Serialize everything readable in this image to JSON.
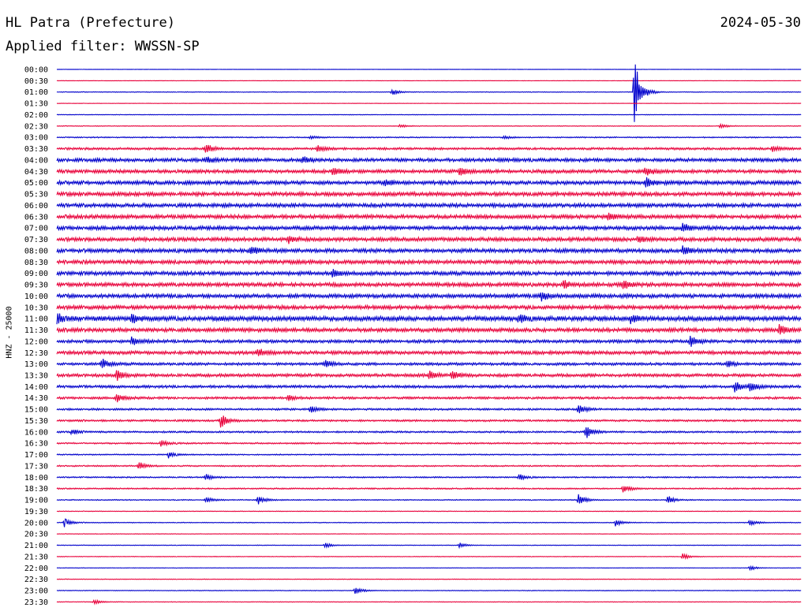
{
  "header": {
    "station": "HL Patra (Prefecture)",
    "date": "2024-05-30",
    "filter": "Applied filter: WWSSN-SP"
  },
  "chart_data": {
    "type": "line",
    "title": "HL Patra (Prefecture)",
    "subtitle": "Applied filter: WWSSN-SP",
    "date": "2024-05-30",
    "ylabel": "HNZ - 25000",
    "xlabel": "",
    "grid": false,
    "row_interval_minutes": 30,
    "colors": [
      "#0000cc",
      "#e8003a"
    ],
    "rows": [
      {
        "label": "00:00",
        "color": "#0000cc",
        "amplitude": 0.1,
        "events": []
      },
      {
        "label": "00:30",
        "color": "#e8003a",
        "amplitude": 0.15,
        "events": []
      },
      {
        "label": "01:00",
        "color": "#0000cc",
        "amplitude": 0.35,
        "events": [
          {
            "t": 0.45,
            "amp": 4
          },
          {
            "t": 0.775,
            "amp": 40
          }
        ]
      },
      {
        "label": "01:30",
        "color": "#e8003a",
        "amplitude": 0.15,
        "events": []
      },
      {
        "label": "02:00",
        "color": "#0000cc",
        "amplitude": 0.3,
        "events": []
      },
      {
        "label": "02:30",
        "color": "#e8003a",
        "amplitude": 0.35,
        "events": [
          {
            "t": 0.46,
            "amp": 2
          },
          {
            "t": 0.89,
            "amp": 3
          }
        ]
      },
      {
        "label": "03:00",
        "color": "#0000cc",
        "amplitude": 0.6,
        "events": [
          {
            "t": 0.34,
            "amp": 2
          },
          {
            "t": 0.6,
            "amp": 2
          }
        ]
      },
      {
        "label": "03:30",
        "color": "#e8003a",
        "amplitude": 1.2,
        "events": [
          {
            "t": 0.2,
            "amp": 6
          },
          {
            "t": 0.35,
            "amp": 4
          },
          {
            "t": 0.96,
            "amp": 4
          }
        ]
      },
      {
        "label": "04:00",
        "color": "#0000cc",
        "amplitude": 1.8,
        "events": [
          {
            "t": 0.2,
            "amp": 4
          },
          {
            "t": 0.33,
            "amp": 4
          }
        ]
      },
      {
        "label": "04:30",
        "color": "#e8003a",
        "amplitude": 1.8,
        "events": [
          {
            "t": 0.37,
            "amp": 5
          },
          {
            "t": 0.54,
            "amp": 5
          },
          {
            "t": 0.79,
            "amp": 6
          }
        ]
      },
      {
        "label": "05:00",
        "color": "#0000cc",
        "amplitude": 2.0,
        "events": [
          {
            "t": 0.44,
            "amp": 4
          },
          {
            "t": 0.79,
            "amp": 7
          }
        ]
      },
      {
        "label": "05:30",
        "color": "#e8003a",
        "amplitude": 2.0,
        "events": []
      },
      {
        "label": "06:00",
        "color": "#0000cc",
        "amplitude": 2.0,
        "events": []
      },
      {
        "label": "06:30",
        "color": "#e8003a",
        "amplitude": 2.0,
        "events": [
          {
            "t": 0.74,
            "amp": 4
          }
        ]
      },
      {
        "label": "07:00",
        "color": "#0000cc",
        "amplitude": 2.0,
        "events": [
          {
            "t": 0.84,
            "amp": 5
          }
        ]
      },
      {
        "label": "07:30",
        "color": "#e8003a",
        "amplitude": 2.0,
        "events": [
          {
            "t": 0.31,
            "amp": 4
          },
          {
            "t": 0.78,
            "amp": 4
          }
        ]
      },
      {
        "label": "08:00",
        "color": "#0000cc",
        "amplitude": 2.0,
        "events": [
          {
            "t": 0.26,
            "amp": 6
          },
          {
            "t": 0.84,
            "amp": 5
          }
        ]
      },
      {
        "label": "08:30",
        "color": "#e8003a",
        "amplitude": 2.0,
        "events": []
      },
      {
        "label": "09:00",
        "color": "#0000cc",
        "amplitude": 2.0,
        "events": [
          {
            "t": 0.37,
            "amp": 4
          }
        ]
      },
      {
        "label": "09:30",
        "color": "#e8003a",
        "amplitude": 2.0,
        "events": [
          {
            "t": 0.68,
            "amp": 5
          },
          {
            "t": 0.76,
            "amp": 5
          }
        ]
      },
      {
        "label": "10:00",
        "color": "#0000cc",
        "amplitude": 2.0,
        "events": [
          {
            "t": 0.65,
            "amp": 5
          }
        ]
      },
      {
        "label": "10:30",
        "color": "#e8003a",
        "amplitude": 2.0,
        "events": []
      },
      {
        "label": "11:00",
        "color": "#0000cc",
        "amplitude": 2.4,
        "events": [
          {
            "t": 0.0,
            "amp": 6
          },
          {
            "t": 0.1,
            "amp": 5
          },
          {
            "t": 0.62,
            "amp": 5
          },
          {
            "t": 0.77,
            "amp": 5
          }
        ]
      },
      {
        "label": "11:30",
        "color": "#e8003a",
        "amplitude": 2.0,
        "events": [
          {
            "t": 0.97,
            "amp": 6
          }
        ]
      },
      {
        "label": "12:00",
        "color": "#0000cc",
        "amplitude": 1.6,
        "events": [
          {
            "t": 0.1,
            "amp": 5
          },
          {
            "t": 0.85,
            "amp": 7
          }
        ]
      },
      {
        "label": "12:30",
        "color": "#e8003a",
        "amplitude": 1.8,
        "events": [
          {
            "t": 0.27,
            "amp": 5
          }
        ]
      },
      {
        "label": "13:00",
        "color": "#0000cc",
        "amplitude": 1.4,
        "events": [
          {
            "t": 0.06,
            "amp": 6
          },
          {
            "t": 0.36,
            "amp": 5
          },
          {
            "t": 0.9,
            "amp": 4
          }
        ]
      },
      {
        "label": "13:30",
        "color": "#e8003a",
        "amplitude": 1.6,
        "events": [
          {
            "t": 0.08,
            "amp": 6
          },
          {
            "t": 0.5,
            "amp": 5
          },
          {
            "t": 0.53,
            "amp": 6
          }
        ]
      },
      {
        "label": "14:00",
        "color": "#0000cc",
        "amplitude": 1.4,
        "events": [
          {
            "t": 0.91,
            "amp": 7
          },
          {
            "t": 0.93,
            "amp": 6
          }
        ]
      },
      {
        "label": "14:30",
        "color": "#e8003a",
        "amplitude": 1.2,
        "events": [
          {
            "t": 0.08,
            "amp": 5
          },
          {
            "t": 0.31,
            "amp": 4
          }
        ]
      },
      {
        "label": "15:00",
        "color": "#0000cc",
        "amplitude": 1.0,
        "events": [
          {
            "t": 0.34,
            "amp": 4
          },
          {
            "t": 0.7,
            "amp": 6
          }
        ]
      },
      {
        "label": "15:30",
        "color": "#e8003a",
        "amplitude": 1.0,
        "events": [
          {
            "t": 0.22,
            "amp": 8
          }
        ]
      },
      {
        "label": "16:00",
        "color": "#0000cc",
        "amplitude": 0.9,
        "events": [
          {
            "t": 0.02,
            "amp": 4
          },
          {
            "t": 0.71,
            "amp": 8
          }
        ]
      },
      {
        "label": "16:30",
        "color": "#e8003a",
        "amplitude": 0.8,
        "events": [
          {
            "t": 0.14,
            "amp": 4
          }
        ]
      },
      {
        "label": "17:00",
        "color": "#0000cc",
        "amplitude": 0.6,
        "events": [
          {
            "t": 0.15,
            "amp": 4
          }
        ]
      },
      {
        "label": "17:30",
        "color": "#e8003a",
        "amplitude": 0.7,
        "events": [
          {
            "t": 0.11,
            "amp": 5
          }
        ]
      },
      {
        "label": "18:00",
        "color": "#0000cc",
        "amplitude": 0.7,
        "events": [
          {
            "t": 0.2,
            "amp": 4
          },
          {
            "t": 0.62,
            "amp": 4
          }
        ]
      },
      {
        "label": "18:30",
        "color": "#e8003a",
        "amplitude": 0.7,
        "events": [
          {
            "t": 0.76,
            "amp": 5
          }
        ]
      },
      {
        "label": "19:00",
        "color": "#0000cc",
        "amplitude": 0.5,
        "events": [
          {
            "t": 0.2,
            "amp": 4
          },
          {
            "t": 0.27,
            "amp": 5
          },
          {
            "t": 0.7,
            "amp": 7
          },
          {
            "t": 0.82,
            "amp": 5
          }
        ]
      },
      {
        "label": "19:30",
        "color": "#e8003a",
        "amplitude": 0.3,
        "events": []
      },
      {
        "label": "20:00",
        "color": "#0000cc",
        "amplitude": 0.4,
        "events": [
          {
            "t": 0.01,
            "amp": 5
          },
          {
            "t": 0.75,
            "amp": 4
          },
          {
            "t": 0.93,
            "amp": 4
          }
        ]
      },
      {
        "label": "20:30",
        "color": "#e8003a",
        "amplitude": 0.25,
        "events": []
      },
      {
        "label": "21:00",
        "color": "#0000cc",
        "amplitude": 0.3,
        "events": [
          {
            "t": 0.36,
            "amp": 3
          },
          {
            "t": 0.54,
            "amp": 3
          }
        ]
      },
      {
        "label": "21:30",
        "color": "#e8003a",
        "amplitude": 0.3,
        "events": [
          {
            "t": 0.84,
            "amp": 4
          }
        ]
      },
      {
        "label": "22:00",
        "color": "#0000cc",
        "amplitude": 0.2,
        "events": [
          {
            "t": 0.93,
            "amp": 3
          }
        ]
      },
      {
        "label": "22:30",
        "color": "#e8003a",
        "amplitude": 0.3,
        "events": []
      },
      {
        "label": "23:00",
        "color": "#0000cc",
        "amplitude": 0.35,
        "events": [
          {
            "t": 0.4,
            "amp": 5
          }
        ]
      },
      {
        "label": "23:30",
        "color": "#e8003a",
        "amplitude": 0.3,
        "events": [
          {
            "t": 0.05,
            "amp": 3
          }
        ]
      }
    ]
  }
}
